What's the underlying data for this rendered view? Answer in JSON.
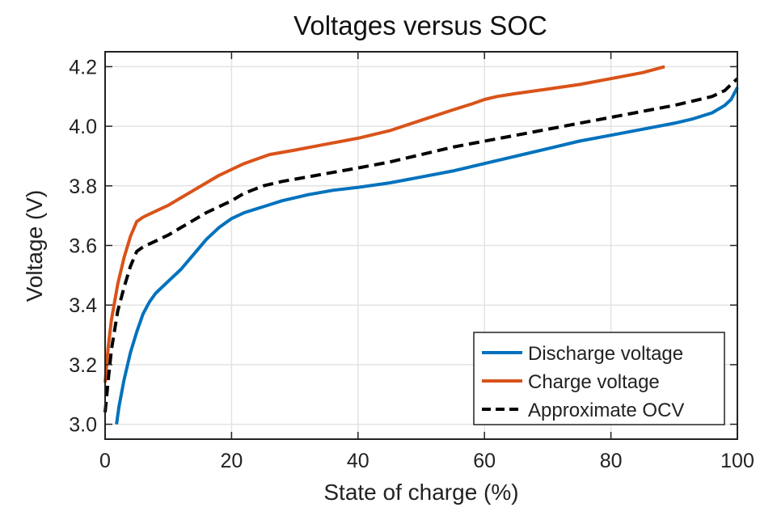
{
  "chart_data": {
    "type": "line",
    "title": "Voltages versus SOC",
    "xlabel": "State of charge (%)",
    "ylabel": "Voltage (V)",
    "xlim": [
      0,
      100
    ],
    "ylim": [
      2.95,
      4.25
    ],
    "xticks": [
      0,
      20,
      40,
      60,
      80,
      100
    ],
    "xtick_labels": [
      "0",
      "20",
      "40",
      "60",
      "80",
      "100"
    ],
    "yticks": [
      3.0,
      3.2,
      3.4,
      3.6,
      3.8,
      4.0,
      4.2
    ],
    "ytick_labels": [
      "3.0",
      "3.2",
      "3.4",
      "3.6",
      "3.8",
      "4.0",
      "4.2"
    ],
    "grid": true,
    "legend_position": "bottom-right",
    "series": [
      {
        "name": "Discharge voltage",
        "color": "#0072bd",
        "style": "solid",
        "x": [
          1.8,
          2.2,
          3,
          4,
          5,
          6,
          7,
          8,
          10,
          12,
          14,
          16,
          18,
          20,
          22,
          25,
          28,
          32,
          36,
          40,
          45,
          50,
          55,
          60,
          65,
          70,
          75,
          80,
          85,
          90,
          93,
          96,
          98,
          99,
          99.5,
          100
        ],
        "y": [
          3.0,
          3.06,
          3.15,
          3.24,
          3.31,
          3.37,
          3.41,
          3.44,
          3.48,
          3.52,
          3.57,
          3.62,
          3.66,
          3.69,
          3.71,
          3.73,
          3.75,
          3.77,
          3.785,
          3.795,
          3.81,
          3.83,
          3.85,
          3.875,
          3.9,
          3.925,
          3.95,
          3.97,
          3.99,
          4.01,
          4.025,
          4.045,
          4.07,
          4.09,
          4.11,
          4.13
        ]
      },
      {
        "name": "Charge voltage",
        "color": "#d95319",
        "style": "solid",
        "x": [
          0,
          0.5,
          1,
          2,
          3,
          4,
          5,
          6,
          8,
          10,
          12,
          14,
          16,
          18,
          20,
          22,
          24,
          26,
          30,
          35,
          40,
          45,
          50,
          55,
          58,
          60,
          62,
          65,
          70,
          75,
          80,
          85,
          88.5
        ],
        "y": [
          3.14,
          3.26,
          3.35,
          3.47,
          3.56,
          3.63,
          3.68,
          3.695,
          3.715,
          3.735,
          3.76,
          3.785,
          3.81,
          3.835,
          3.855,
          3.875,
          3.89,
          3.905,
          3.92,
          3.94,
          3.96,
          3.985,
          4.02,
          4.055,
          4.075,
          4.09,
          4.1,
          4.11,
          4.125,
          4.14,
          4.16,
          4.18,
          4.2
        ]
      },
      {
        "name": "Approximate OCV",
        "color": "#000000",
        "style": "dashed",
        "x": [
          0,
          0.5,
          1,
          2,
          3,
          4,
          5,
          6,
          8,
          10,
          12,
          14,
          16,
          18,
          20,
          22,
          25,
          28,
          32,
          36,
          40,
          45,
          50,
          55,
          60,
          65,
          70,
          75,
          80,
          85,
          90,
          93,
          96,
          98,
          99,
          100
        ],
        "y": [
          3.04,
          3.15,
          3.25,
          3.38,
          3.46,
          3.53,
          3.58,
          3.595,
          3.615,
          3.635,
          3.66,
          3.685,
          3.71,
          3.73,
          3.75,
          3.775,
          3.8,
          3.815,
          3.83,
          3.845,
          3.86,
          3.88,
          3.905,
          3.93,
          3.95,
          3.97,
          3.99,
          4.01,
          4.03,
          4.05,
          4.07,
          4.085,
          4.1,
          4.12,
          4.14,
          4.16
        ]
      }
    ]
  }
}
